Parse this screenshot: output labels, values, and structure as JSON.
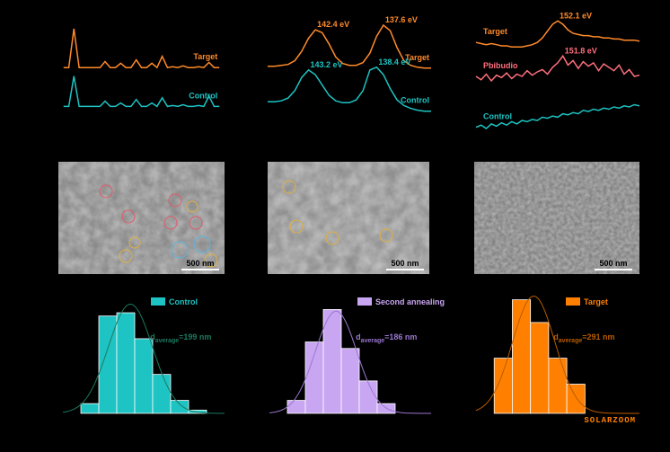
{
  "chart_data": [
    {
      "type": "line",
      "label_position": "end",
      "x": [
        0,
        1,
        2,
        3,
        4,
        5,
        6,
        7,
        8,
        9,
        10,
        11,
        12,
        13,
        14,
        15,
        16,
        17,
        18,
        19,
        20,
        21,
        22,
        23,
        24,
        25,
        26,
        27,
        28,
        29,
        30
      ],
      "xlim": [
        -1,
        31
      ],
      "ylim": [
        0,
        100
      ],
      "series": [
        {
          "name": "Target",
          "color": "#ff8a2a",
          "values": [
            55,
            55,
            100,
            55,
            55,
            55,
            55,
            55,
            62,
            55,
            55,
            60,
            55,
            55,
            64,
            55,
            55,
            60,
            55,
            68,
            55,
            56,
            55,
            57,
            55,
            55,
            56,
            55,
            61,
            55,
            55
          ]
        },
        {
          "name": "Control",
          "color": "#1ec3c3",
          "values": [
            10,
            10,
            45,
            10,
            10,
            10,
            10,
            10,
            16,
            10,
            10,
            14,
            10,
            10,
            18,
            10,
            10,
            14,
            10,
            20,
            10,
            11,
            10,
            12,
            10,
            10,
            11,
            10,
            22,
            10,
            10
          ]
        }
      ]
    },
    {
      "type": "line",
      "label_position": "end",
      "x": [
        146,
        145.5,
        145,
        144.5,
        144,
        143.5,
        143,
        142.5,
        142,
        141.5,
        141,
        140.5,
        140,
        139.5,
        139,
        138.5,
        138,
        137.5,
        137,
        136.5,
        136,
        135.5,
        135,
        134.5,
        134
      ],
      "xlim": [
        146,
        134
      ],
      "ylim": [
        0,
        100
      ],
      "series": [
        {
          "name": "Target",
          "color": "#ff8a2a",
          "peak_labels": [
            "142.4 eV",
            "137.6 eV"
          ],
          "values": [
            56,
            56,
            57,
            58,
            62,
            72,
            86,
            95,
            92,
            80,
            66,
            59,
            57,
            57,
            60,
            70,
            88,
            100,
            94,
            76,
            62,
            57,
            55,
            54,
            54
          ]
        },
        {
          "name": "Control",
          "color": "#1ec3c3",
          "peak_labels": [
            "143.2 eV",
            "138.4 eV"
          ],
          "values": [
            18,
            18,
            19,
            22,
            30,
            44,
            52,
            47,
            36,
            25,
            19,
            17,
            17,
            20,
            30,
            52,
            55,
            47,
            32,
            20,
            14,
            11,
            9,
            8,
            8
          ]
        }
      ]
    },
    {
      "type": "line",
      "label_position": "start",
      "x": [
        160,
        159.5,
        159,
        158.5,
        158,
        157.5,
        157,
        156.5,
        156,
        155.5,
        155,
        154.5,
        154,
        153.5,
        153,
        152.5,
        152,
        151.5,
        151,
        150.5,
        150,
        149.5,
        149,
        148.5,
        148,
        147.5,
        147,
        146.5,
        146,
        145.5,
        145,
        144.5,
        144
      ],
      "xlim": [
        160,
        144
      ],
      "ylim": [
        0,
        100
      ],
      "series": [
        {
          "name": "Target",
          "color": "#ff8a2a",
          "peak_labels": [
            "152.1 eV"
          ],
          "values": [
            80,
            79,
            78,
            79,
            78,
            77,
            77,
            76,
            76,
            76,
            77,
            78,
            80,
            84,
            90,
            96,
            99,
            96,
            91,
            88,
            87,
            86,
            86,
            85,
            85,
            84,
            84,
            83,
            83,
            82,
            82,
            82,
            81
          ]
        },
        {
          "name": "Pbibudio",
          "color": "#ff6f7d",
          "peak_labels": [
            "151.8 eV"
          ],
          "values": [
            50,
            47,
            52,
            46,
            51,
            49,
            53,
            48,
            52,
            50,
            55,
            51,
            54,
            56,
            52,
            58,
            62,
            68,
            60,
            64,
            57,
            63,
            59,
            62,
            55,
            61,
            58,
            55,
            60,
            52,
            56,
            50,
            51
          ]
        },
        {
          "name": "Control",
          "color": "#1ec3c3",
          "values": [
            5,
            7,
            4,
            8,
            6,
            9,
            7,
            10,
            8,
            11,
            10,
            12,
            11,
            14,
            13,
            15,
            14,
            17,
            16,
            18,
            17,
            20,
            19,
            21,
            20,
            22,
            21,
            23,
            22,
            24,
            23,
            25,
            24
          ]
        }
      ]
    },
    {
      "type": "histogram",
      "bins": [
        0,
        1,
        2,
        3,
        4,
        5,
        6,
        7
      ],
      "xlim": [
        -1,
        8
      ],
      "ylim": [
        0,
        36
      ],
      "series": [
        {
          "name": "Control",
          "color": "#1ec3c3",
          "fit_color": "#1a7a60",
          "values": [
            3,
            30,
            31,
            23,
            12,
            4,
            1
          ]
        }
      ],
      "annotation": {
        "symbol": "d",
        "subscript": "average",
        "text": "=199 nm"
      }
    },
    {
      "type": "histogram",
      "bins": [
        0,
        1,
        2,
        3,
        4,
        5,
        6
      ],
      "xlim": [
        -1,
        8
      ],
      "ylim": [
        0,
        36
      ],
      "series": [
        {
          "name": "Second annealing",
          "color": "#c9a6f2",
          "fit_color": "#9a78d0",
          "values": [
            4,
            22,
            32,
            20,
            10,
            3
          ]
        }
      ],
      "annotation": {
        "symbol": "d",
        "subscript": "average",
        "text": "=186 nm"
      }
    },
    {
      "type": "histogram",
      "bins": [
        0,
        1,
        2,
        3,
        4,
        5
      ],
      "xlim": [
        -1,
        8
      ],
      "ylim": [
        0,
        36
      ],
      "series": [
        {
          "name": "Target",
          "color": "#ff8000",
          "fit_color": "#b85c00",
          "values": [
            17,
            35,
            28,
            17,
            9
          ]
        }
      ],
      "annotation": {
        "symbol": "d",
        "subscript": "average",
        "text": "=291 nm"
      }
    }
  ],
  "images": [
    {
      "scale_bar": "500 nm"
    },
    {
      "scale_bar": "500 nm"
    },
    {
      "scale_bar": "500 nm"
    }
  ],
  "watermark": "SOLARZOOM"
}
